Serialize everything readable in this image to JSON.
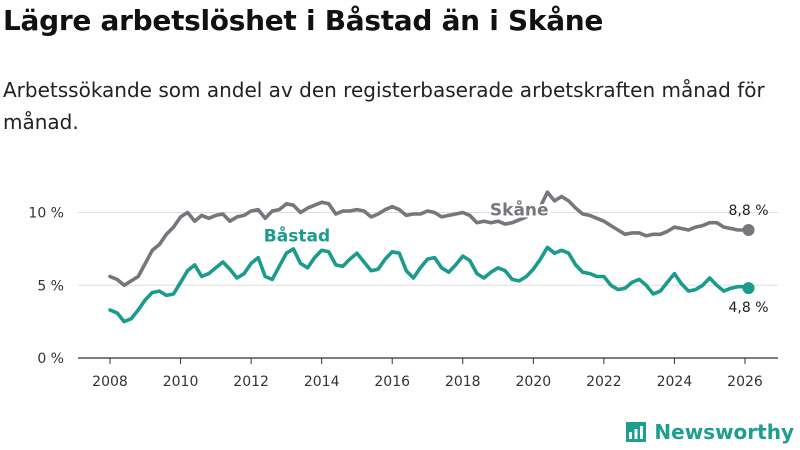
{
  "header": {
    "title": "Lägre arbetslöshet i Båstad än i Skåne",
    "subtitle": "Arbetssökande som andel av den registerbaserade arbetskraften månad för månad."
  },
  "brand": {
    "name": "Newsworthy",
    "color": "#1e9e8e"
  },
  "chart_data": {
    "type": "line",
    "title": "Lägre arbetslöshet i Båstad än i Skåne",
    "xlabel": "",
    "ylabel": "",
    "xlim": [
      2007.5,
      2026.8
    ],
    "ylim": [
      0,
      12
    ],
    "grid": true,
    "x_ticks": [
      2008,
      2010,
      2012,
      2014,
      2016,
      2018,
      2020,
      2022,
      2024,
      2026
    ],
    "y_ticks": [
      {
        "value": 0,
        "label": "0 %"
      },
      {
        "value": 5,
        "label": "5 %"
      },
      {
        "value": 10,
        "label": "10 %"
      }
    ],
    "series": [
      {
        "name": "Skåne",
        "color": "#78767c",
        "end_label": "8,8 %",
        "points": [
          [
            2008.0,
            5.6
          ],
          [
            2008.2,
            5.4
          ],
          [
            2008.4,
            5.0
          ],
          [
            2008.6,
            5.3
          ],
          [
            2008.8,
            5.6
          ],
          [
            2009.0,
            6.5
          ],
          [
            2009.2,
            7.4
          ],
          [
            2009.4,
            7.8
          ],
          [
            2009.6,
            8.5
          ],
          [
            2009.8,
            9.0
          ],
          [
            2010.0,
            9.7
          ],
          [
            2010.2,
            10.0
          ],
          [
            2010.4,
            9.4
          ],
          [
            2010.6,
            9.8
          ],
          [
            2010.8,
            9.6
          ],
          [
            2011.0,
            9.8
          ],
          [
            2011.2,
            9.9
          ],
          [
            2011.4,
            9.4
          ],
          [
            2011.6,
            9.7
          ],
          [
            2011.8,
            9.8
          ],
          [
            2012.0,
            10.1
          ],
          [
            2012.2,
            10.2
          ],
          [
            2012.4,
            9.6
          ],
          [
            2012.6,
            10.1
          ],
          [
            2012.8,
            10.2
          ],
          [
            2013.0,
            10.6
          ],
          [
            2013.2,
            10.5
          ],
          [
            2013.4,
            10.0
          ],
          [
            2013.6,
            10.3
          ],
          [
            2013.8,
            10.5
          ],
          [
            2014.0,
            10.7
          ],
          [
            2014.2,
            10.6
          ],
          [
            2014.4,
            9.9
          ],
          [
            2014.6,
            10.1
          ],
          [
            2014.8,
            10.1
          ],
          [
            2015.0,
            10.2
          ],
          [
            2015.2,
            10.1
          ],
          [
            2015.4,
            9.7
          ],
          [
            2015.6,
            9.9
          ],
          [
            2015.8,
            10.2
          ],
          [
            2016.0,
            10.4
          ],
          [
            2016.2,
            10.2
          ],
          [
            2016.4,
            9.8
          ],
          [
            2016.6,
            9.9
          ],
          [
            2016.8,
            9.9
          ],
          [
            2017.0,
            10.1
          ],
          [
            2017.2,
            10.0
          ],
          [
            2017.4,
            9.7
          ],
          [
            2017.6,
            9.8
          ],
          [
            2017.8,
            9.9
          ],
          [
            2018.0,
            10.0
          ],
          [
            2018.2,
            9.8
          ],
          [
            2018.4,
            9.3
          ],
          [
            2018.6,
            9.4
          ],
          [
            2018.8,
            9.3
          ],
          [
            2019.0,
            9.4
          ],
          [
            2019.2,
            9.2
          ],
          [
            2019.4,
            9.3
          ],
          [
            2019.6,
            9.5
          ],
          [
            2019.8,
            9.7
          ],
          [
            2020.0,
            10.1
          ],
          [
            2020.2,
            10.4
          ],
          [
            2020.4,
            11.4
          ],
          [
            2020.6,
            10.8
          ],
          [
            2020.8,
            11.1
          ],
          [
            2021.0,
            10.8
          ],
          [
            2021.2,
            10.3
          ],
          [
            2021.4,
            9.9
          ],
          [
            2021.6,
            9.8
          ],
          [
            2021.8,
            9.6
          ],
          [
            2022.0,
            9.4
          ],
          [
            2022.2,
            9.1
          ],
          [
            2022.4,
            8.8
          ],
          [
            2022.6,
            8.5
          ],
          [
            2022.8,
            8.6
          ],
          [
            2023.0,
            8.6
          ],
          [
            2023.2,
            8.4
          ],
          [
            2023.4,
            8.5
          ],
          [
            2023.6,
            8.5
          ],
          [
            2023.8,
            8.7
          ],
          [
            2024.0,
            9.0
          ],
          [
            2024.2,
            8.9
          ],
          [
            2024.4,
            8.8
          ],
          [
            2024.6,
            9.0
          ],
          [
            2024.8,
            9.1
          ],
          [
            2025.0,
            9.3
          ],
          [
            2025.2,
            9.3
          ],
          [
            2025.4,
            9.0
          ],
          [
            2025.6,
            8.9
          ],
          [
            2025.8,
            8.8
          ],
          [
            2026.0,
            8.8
          ],
          [
            2026.1,
            8.8
          ]
        ]
      },
      {
        "name": "Båstad",
        "color": "#1a9b8c",
        "end_label": "4,8 %",
        "points": [
          [
            2008.0,
            3.3
          ],
          [
            2008.2,
            3.1
          ],
          [
            2008.4,
            2.5
          ],
          [
            2008.6,
            2.7
          ],
          [
            2008.8,
            3.3
          ],
          [
            2009.0,
            4.0
          ],
          [
            2009.2,
            4.5
          ],
          [
            2009.4,
            4.6
          ],
          [
            2009.6,
            4.3
          ],
          [
            2009.8,
            4.4
          ],
          [
            2010.0,
            5.2
          ],
          [
            2010.2,
            6.0
          ],
          [
            2010.4,
            6.4
          ],
          [
            2010.6,
            5.6
          ],
          [
            2010.8,
            5.8
          ],
          [
            2011.0,
            6.2
          ],
          [
            2011.2,
            6.6
          ],
          [
            2011.4,
            6.1
          ],
          [
            2011.6,
            5.5
          ],
          [
            2011.8,
            5.8
          ],
          [
            2012.0,
            6.5
          ],
          [
            2012.2,
            6.9
          ],
          [
            2012.4,
            5.6
          ],
          [
            2012.6,
            5.4
          ],
          [
            2012.8,
            6.3
          ],
          [
            2013.0,
            7.2
          ],
          [
            2013.2,
            7.5
          ],
          [
            2013.4,
            6.5
          ],
          [
            2013.6,
            6.2
          ],
          [
            2013.8,
            6.9
          ],
          [
            2014.0,
            7.4
          ],
          [
            2014.2,
            7.3
          ],
          [
            2014.4,
            6.4
          ],
          [
            2014.6,
            6.3
          ],
          [
            2014.8,
            6.8
          ],
          [
            2015.0,
            7.2
          ],
          [
            2015.2,
            6.6
          ],
          [
            2015.4,
            6.0
          ],
          [
            2015.6,
            6.1
          ],
          [
            2015.8,
            6.8
          ],
          [
            2016.0,
            7.3
          ],
          [
            2016.2,
            7.2
          ],
          [
            2016.4,
            6.0
          ],
          [
            2016.6,
            5.5
          ],
          [
            2016.8,
            6.2
          ],
          [
            2017.0,
            6.8
          ],
          [
            2017.2,
            6.9
          ],
          [
            2017.4,
            6.2
          ],
          [
            2017.6,
            5.9
          ],
          [
            2017.8,
            6.4
          ],
          [
            2018.0,
            7.0
          ],
          [
            2018.2,
            6.7
          ],
          [
            2018.4,
            5.8
          ],
          [
            2018.6,
            5.5
          ],
          [
            2018.8,
            5.9
          ],
          [
            2019.0,
            6.2
          ],
          [
            2019.2,
            6.0
          ],
          [
            2019.4,
            5.4
          ],
          [
            2019.6,
            5.3
          ],
          [
            2019.8,
            5.6
          ],
          [
            2020.0,
            6.1
          ],
          [
            2020.2,
            6.8
          ],
          [
            2020.4,
            7.6
          ],
          [
            2020.6,
            7.2
          ],
          [
            2020.8,
            7.4
          ],
          [
            2021.0,
            7.2
          ],
          [
            2021.2,
            6.4
          ],
          [
            2021.4,
            5.9
          ],
          [
            2021.6,
            5.8
          ],
          [
            2021.8,
            5.6
          ],
          [
            2022.0,
            5.6
          ],
          [
            2022.2,
            5.0
          ],
          [
            2022.4,
            4.7
          ],
          [
            2022.6,
            4.8
          ],
          [
            2022.8,
            5.2
          ],
          [
            2023.0,
            5.4
          ],
          [
            2023.2,
            5.0
          ],
          [
            2023.4,
            4.4
          ],
          [
            2023.6,
            4.6
          ],
          [
            2023.8,
            5.2
          ],
          [
            2024.0,
            5.8
          ],
          [
            2024.2,
            5.1
          ],
          [
            2024.4,
            4.6
          ],
          [
            2024.6,
            4.7
          ],
          [
            2024.8,
            5.0
          ],
          [
            2025.0,
            5.5
          ],
          [
            2025.2,
            5.0
          ],
          [
            2025.4,
            4.6
          ],
          [
            2025.6,
            4.8
          ],
          [
            2025.8,
            4.9
          ],
          [
            2026.0,
            4.9
          ],
          [
            2026.1,
            4.8
          ]
        ]
      }
    ],
    "annotations": [
      {
        "text": "Skåne",
        "series": "Skåne",
        "x": 2019.6,
        "y": 9.8
      },
      {
        "text": "Båstad",
        "series": "Båstad",
        "x": 2013.3,
        "y": 8.0
      }
    ]
  }
}
